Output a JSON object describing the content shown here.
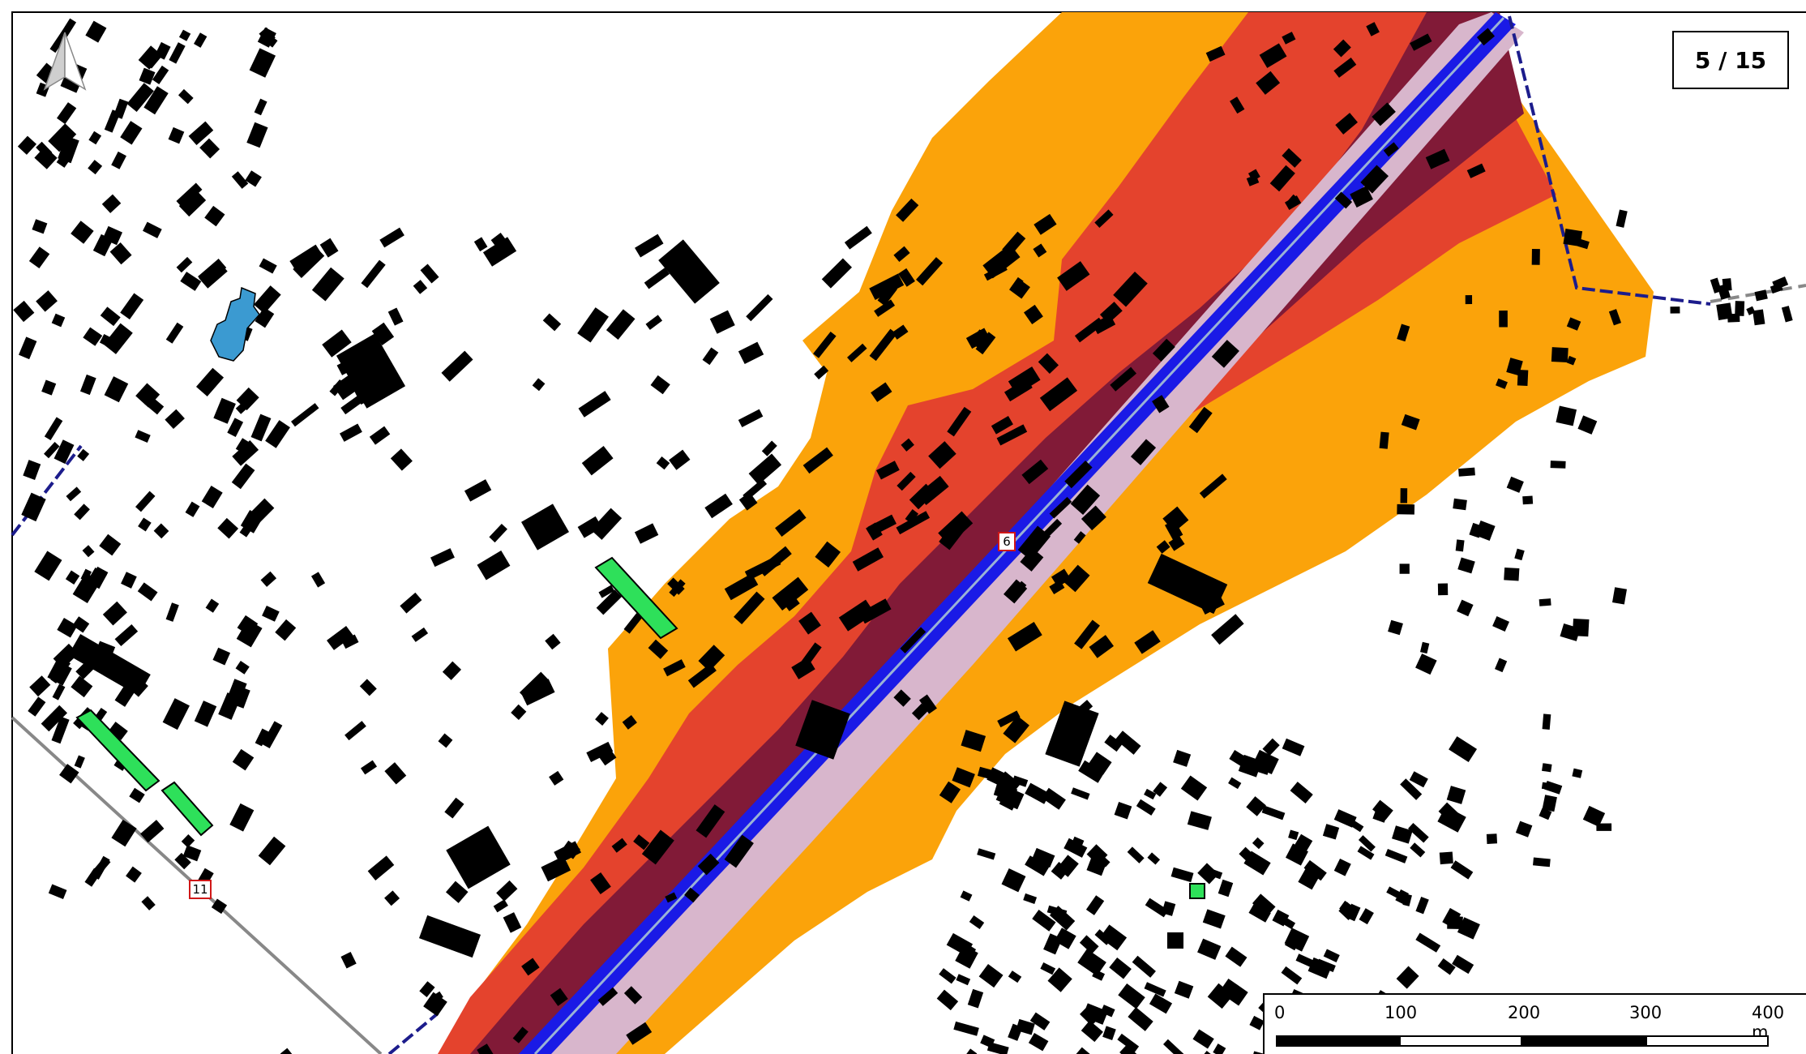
{
  "page_counter": "5 / 15",
  "scale_bar": {
    "labels": [
      "0",
      "100",
      "200",
      "300",
      "400 m"
    ]
  },
  "route_shields": {
    "road_6": "6",
    "road_11": "11"
  },
  "icons": {
    "north_arrow": "north-arrow-icon"
  },
  "colors": {
    "noise_band_outer": "#fba30a",
    "noise_band_middle": "#e4432d",
    "noise_band_inner": "#811a37",
    "road_buffer": "#d8b6cc",
    "road_line": "#1a1ae6",
    "buildings": "#000000",
    "highlighted_buildings_green": "#2ee05a",
    "highlighted_building_blue": "#3b9ad1",
    "municipal_boundary": "#1c1c8c",
    "road_gray": "#888888"
  }
}
